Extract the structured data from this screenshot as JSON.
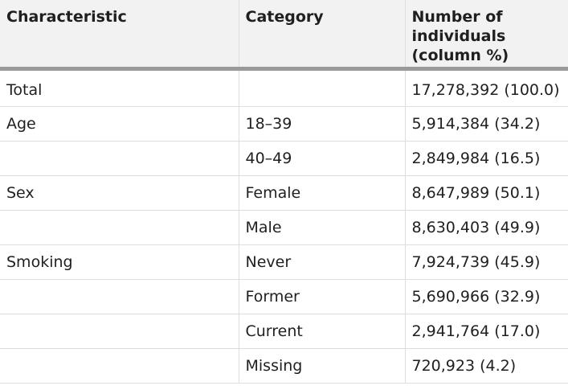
{
  "table": {
    "headers": [
      "Characteristic",
      "Category",
      "Number of individuals (column %)"
    ],
    "rows": [
      {
        "characteristic": "Total",
        "category": "",
        "value": "17,278,392 (100.0)"
      },
      {
        "characteristic": "Age",
        "category": "18–39",
        "value": "5,914,384 (34.2)"
      },
      {
        "characteristic": "",
        "category": "40–49",
        "value": "2,849,984 (16.5)"
      },
      {
        "characteristic": "Sex",
        "category": "Female",
        "value": "8,647,989 (50.1)"
      },
      {
        "characteristic": "",
        "category": "Male",
        "value": "8,630,403 (49.9)"
      },
      {
        "characteristic": "Smoking",
        "category": "Never",
        "value": "7,924,739 (45.9)"
      },
      {
        "characteristic": "",
        "category": "Former",
        "value": "5,690,966 (32.9)"
      },
      {
        "characteristic": "",
        "category": "Current",
        "value": "2,941,764 (17.0)"
      },
      {
        "characteristic": "",
        "category": "Missing",
        "value": "720,923 (4.2)"
      }
    ]
  }
}
